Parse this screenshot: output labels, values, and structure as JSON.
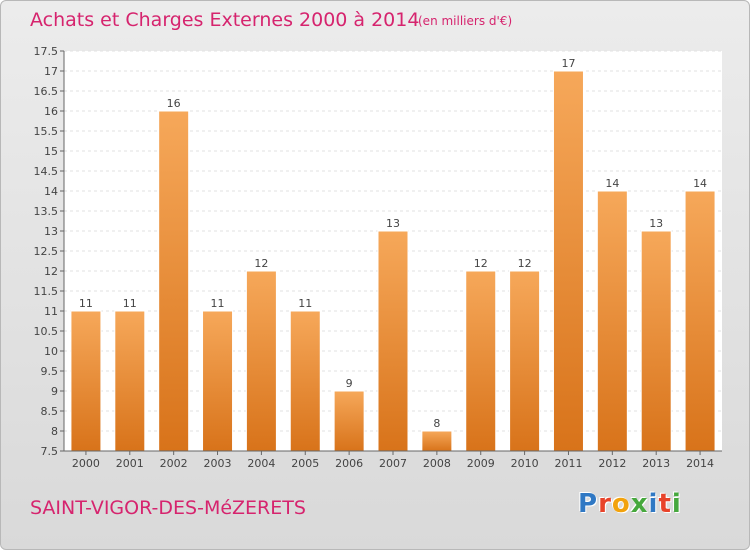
{
  "title": "Achats et Charges Externes 2000 à 2014",
  "unit": "(en milliers d'€)",
  "place": "SAINT-VIGOR-DES-MéZERETS",
  "brand": {
    "letters": [
      "P",
      "r",
      "o",
      "x",
      "i",
      "t",
      "i"
    ],
    "colors": [
      "#2f78c4",
      "#e8432a",
      "#f2a20c",
      "#46a83d",
      "#2f78c4",
      "#e8432a",
      "#46a83d"
    ]
  },
  "colors": {
    "bar_light": "#f6a85a",
    "bar_dark": "#d8731a",
    "title": "#d6246e"
  },
  "chart_data": {
    "type": "bar",
    "categories": [
      "2000",
      "2001",
      "2002",
      "2003",
      "2004",
      "2005",
      "2006",
      "2007",
      "2008",
      "2009",
      "2010",
      "2011",
      "2012",
      "2013",
      "2014"
    ],
    "values": [
      11,
      11,
      16,
      11,
      12,
      11,
      9,
      13,
      8,
      12,
      12,
      17,
      14,
      13,
      14
    ],
    "data_labels": [
      "11",
      "11",
      "16",
      "11",
      "12",
      "11",
      "9",
      "13",
      "8",
      "12",
      "12",
      "17",
      "14",
      "13",
      "14"
    ],
    "ylim": [
      7.5,
      17.5
    ],
    "yticks": [
      7.5,
      8,
      8.5,
      9,
      9.5,
      10,
      10.5,
      11,
      11.5,
      12,
      12.5,
      13,
      13.5,
      14,
      14.5,
      15,
      15.5,
      16,
      16.5,
      17,
      17.5
    ],
    "ytick_labels": [
      "7.5",
      "8",
      "8.5",
      "9",
      "9.5",
      "10",
      "10.5",
      "11",
      "11.5",
      "12",
      "12.5",
      "13",
      "13.5",
      "14",
      "14.5",
      "15",
      "15.5",
      "16",
      "16.5",
      "17",
      "17.5"
    ],
    "grid": true
  }
}
